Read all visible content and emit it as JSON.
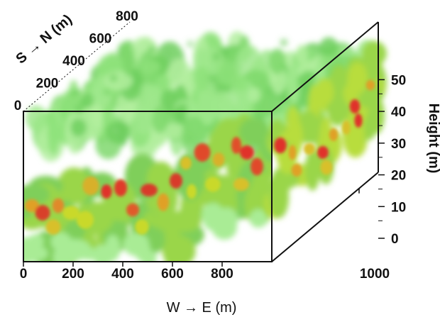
{
  "chart_data": {
    "type": "heatmap",
    "title": "",
    "colors": {
      "low": "#8ee27a",
      "mid": "#c9d92c",
      "high": "#f0a020",
      "peak": "#e0302a",
      "frame": "#111111"
    },
    "axes": {
      "x": {
        "label": "W → E (m)",
        "ticks": [
          "0",
          "200",
          "400",
          "600",
          "800",
          "1000"
        ],
        "range": [
          0,
          1000
        ]
      },
      "y": {
        "label": "S → N (m)",
        "ticks": [
          "0",
          "200",
          "400",
          "600",
          "800"
        ],
        "range": [
          0,
          800
        ]
      },
      "z": {
        "label": "Height (m)",
        "ticks": [
          "0",
          "10",
          "20",
          "30",
          "40",
          "50"
        ],
        "range": [
          0,
          55
        ]
      }
    },
    "grid": false,
    "legend": "none"
  }
}
